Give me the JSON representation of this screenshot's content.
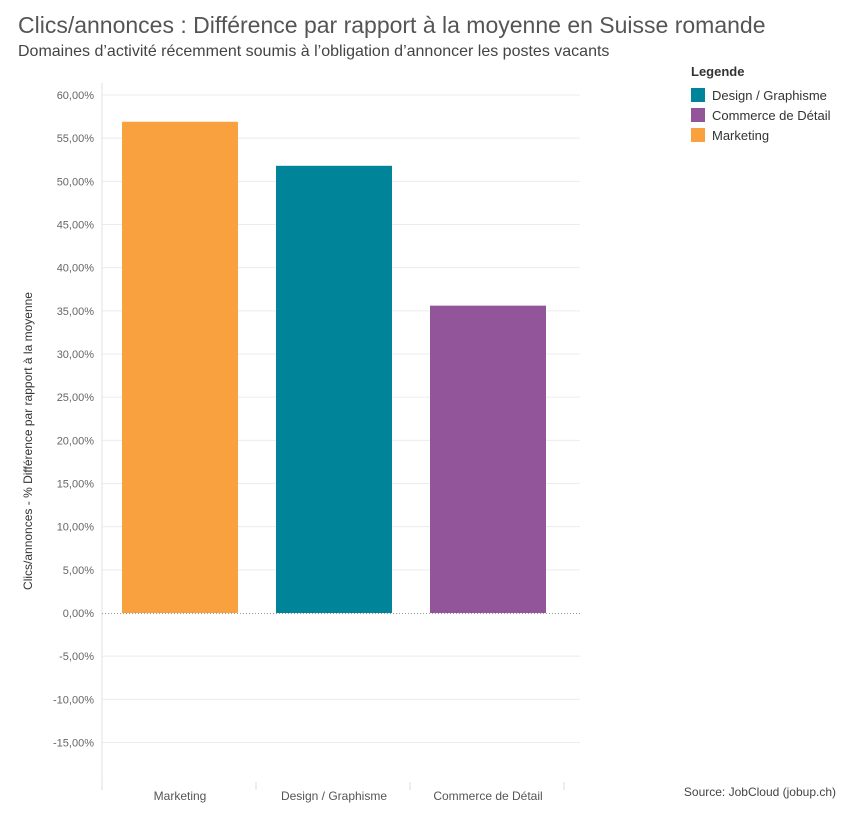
{
  "chart_data": {
    "type": "bar",
    "title": "Clics/annonces : Différence par rapport à la moyenne en Suisse romande",
    "subtitle": "Domaines d’activité récemment soumis à l’obligation d’annoncer les postes vacants",
    "ylabel": "Clics/annonces - % Différence par rapport à la moyenne",
    "xlabel": "",
    "categories": [
      "Marketing",
      "Design / Graphisme",
      "Commerce de Détail"
    ],
    "values": [
      56.9,
      51.8,
      35.6
    ],
    "colors": [
      "#F9A03F",
      "#00849A",
      "#93559A"
    ],
    "ylim": [
      -18.5,
      60
    ],
    "yticks": [
      60,
      55,
      50,
      45,
      40,
      35,
      30,
      25,
      20,
      15,
      10,
      5,
      0,
      -5,
      -10,
      -15
    ],
    "ytick_labels": [
      "60,00%",
      "55,00%",
      "50,00%",
      "45,00%",
      "40,00%",
      "35,00%",
      "30,00%",
      "25,00%",
      "20,00%",
      "15,00%",
      "10,00%",
      "5,00%",
      "0,00%",
      "-5,00%",
      "-10,00%",
      "-15,00%"
    ],
    "grid": true,
    "legend": {
      "title": "Legende",
      "position": "top-right",
      "items": [
        {
          "label": "Design / Graphisme",
          "color": "#00849A"
        },
        {
          "label": "Commerce de Détail",
          "color": "#93559A"
        },
        {
          "label": "Marketing",
          "color": "#F9A03F"
        }
      ]
    },
    "source": "Source: JobCloud (jobup.ch)"
  }
}
